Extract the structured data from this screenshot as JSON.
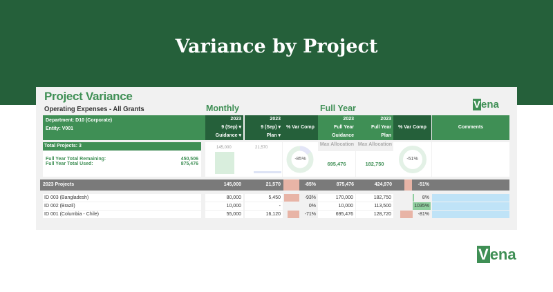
{
  "slide": {
    "title": "Variance by Project"
  },
  "report": {
    "title": "Project Variance",
    "subtitle": "Operating Expenses - All Grants",
    "monthly_label": "Monthly",
    "full_year_label": "Full Year",
    "department": "Department: D10 (Corporate)",
    "entity": "Entity: V001",
    "monthly_cols": [
      {
        "year": "2023",
        "period": "9 (Sep) ▾",
        "type": "Guidance ▾"
      },
      {
        "year": "2023",
        "period": "9 (Sep) ▾",
        "type": "Plan ▾"
      }
    ],
    "var_comp": "% Var Comp",
    "fy_cols": [
      {
        "year": "2023",
        "l1": "Full Year",
        "l2": "Guidance"
      },
      {
        "year": "2023",
        "l1": "Full Year",
        "l2": "Plan"
      }
    ],
    "comments": "Comments",
    "total_projects": "Total Projects: 3",
    "remaining_label": "Full Year Total Remaining:",
    "remaining_value": "450,506",
    "used_label": "Full Year Total Used:",
    "used_value": "875,476",
    "mini_guidance": "145,000",
    "mini_plan": "21,570",
    "monthly_donut": "-85%",
    "fy_donut": "-51%",
    "max_alloc": "Max Allocation",
    "max_guidance": "695,476",
    "max_plan": "182,750",
    "group": {
      "label": "2023 Projects",
      "guidance": "145,000",
      "plan": "21,570",
      "var": "-85%",
      "fy_guidance": "875,476",
      "fy_plan": "424,970",
      "fy_var": "-51%"
    },
    "rows": [
      {
        "name": "ID 003 (Bangladesh)",
        "guidance": "80,000",
        "plan": "5,450",
        "var": "-93%",
        "fy_guidance": "170,000",
        "fy_plan": "182,750",
        "fy_var": "8%",
        "bar": 0.93,
        "fybar": 0.08,
        "fypos": true
      },
      {
        "name": "ID 002 (Brazil)",
        "guidance": "10,000",
        "plan": "-",
        "var": "0%",
        "fy_guidance": "10,000",
        "fy_plan": "113,500",
        "fy_var": "1035%",
        "bar": 0,
        "fybar": 1,
        "fypos": true
      },
      {
        "name": "ID 001 (Columbia - Chile)",
        "guidance": "55,000",
        "plan": "16,120",
        "var": "-71%",
        "fy_guidance": "695,476",
        "fy_plan": "128,720",
        "fy_var": "-81%",
        "bar": 0.71,
        "fybar": 0.81,
        "fypos": false
      }
    ]
  },
  "colors": {
    "brand": "#25603a",
    "accent": "#3f8f55",
    "negative": "#e8b4a6",
    "positive": "#8fcf9f",
    "comment": "#bfe3f7"
  },
  "logo": "vena"
}
